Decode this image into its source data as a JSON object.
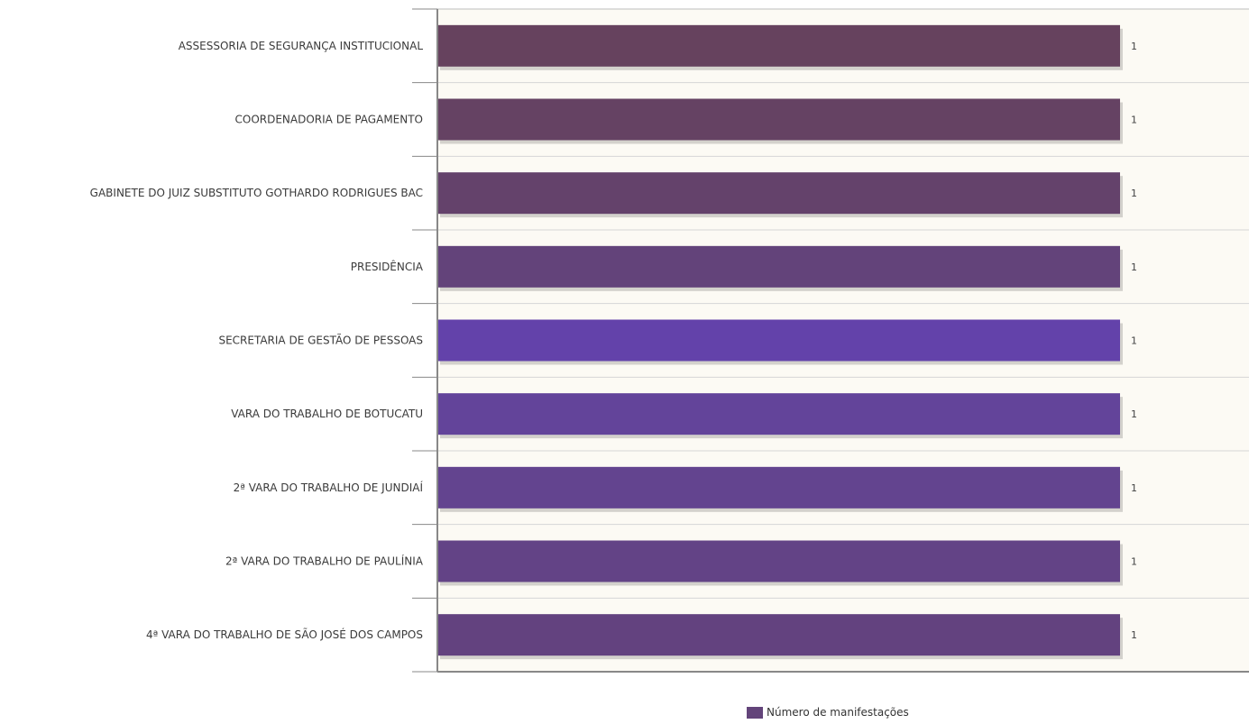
{
  "chart_data": {
    "type": "bar",
    "orientation": "horizontal",
    "categories": [
      "ASSESSORIA DE SEGURANÇA INSTITUCIONAL",
      "COORDENADORIA DE PAGAMENTO",
      "GABINETE DO JUIZ SUBSTITUTO GOTHARDO RODRIGUES BAC",
      "PRESIDÊNCIA",
      "SECRETARIA DE GESTÃO DE PESSOAS",
      "VARA DO TRABALHO DE BOTUCATU",
      "2ª VARA DO TRABALHO DE JUNDIAÍ",
      "2ª VARA DO TRABALHO DE PAULÍNIA",
      "4ª VARA DO TRABALHO DE SÃO JOSÉ DOS CAMPOS"
    ],
    "values": [
      1,
      1,
      1,
      1,
      1,
      1,
      1,
      1,
      1
    ],
    "value_labels": [
      "1",
      "1",
      "1",
      "1",
      "1",
      "1",
      "1",
      "1",
      "1"
    ],
    "bar_colors": [
      "#66425e",
      "#654263",
      "#64426b",
      "#63437a",
      "#6342aa",
      "#63449a",
      "#63448f",
      "#634386",
      "#63427f"
    ],
    "series": [
      {
        "name": "Número de manifestações",
        "values": [
          1,
          1,
          1,
          1,
          1,
          1,
          1,
          1,
          1
        ]
      }
    ],
    "xlim": [
      0,
      1.14
    ],
    "legend_position": "bottom-center",
    "plot_background": "#fcfaf4",
    "grid": true
  },
  "legend": {
    "label": "Número de manifestações",
    "color": "#63447a"
  }
}
